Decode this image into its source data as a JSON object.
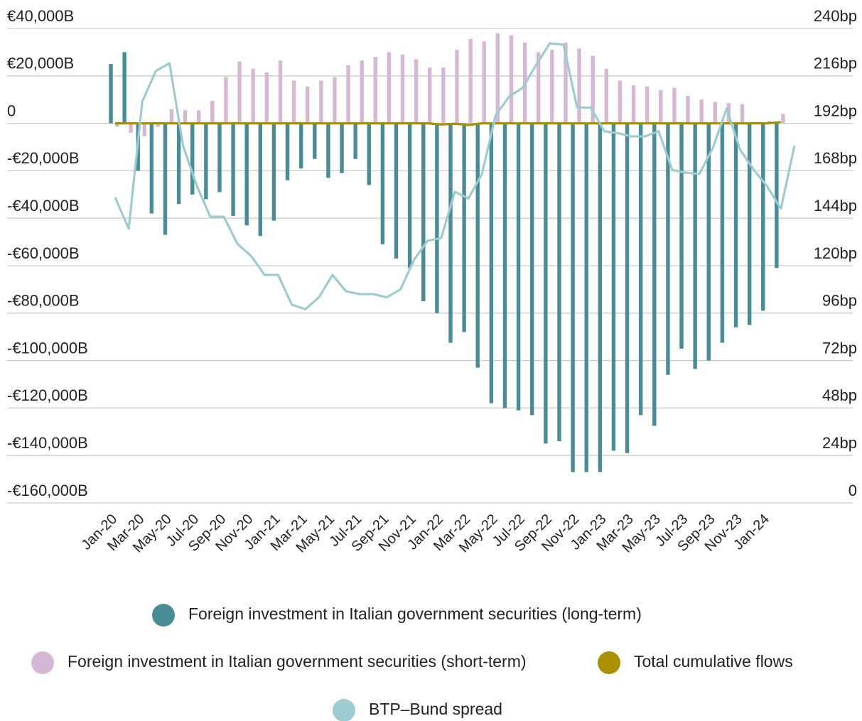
{
  "chart_data": {
    "type": "bar",
    "categories": [
      "Jan-20",
      null,
      "Mar-20",
      null,
      "May-20",
      null,
      "Jul-20",
      null,
      "Sep-20",
      null,
      "Nov-20",
      null,
      "Jan-21",
      null,
      "Mar-21",
      null,
      "May-21",
      null,
      "Jul-21",
      null,
      "Sep-21",
      null,
      "Nov-21",
      null,
      "Jan-22",
      null,
      "Mar-22",
      null,
      "May-22",
      null,
      "Jul-22",
      null,
      "Sep-22",
      null,
      "Nov-22",
      null,
      "Jan-23",
      null,
      "Mar-23",
      null,
      "May-23",
      null,
      "Jul-23",
      null,
      "Sep-23",
      null,
      "Nov-23",
      null,
      "Jan-24",
      null,
      null
    ],
    "series": [
      {
        "name": "Foreign investment in Italian government securities (long-term)",
        "type": "bar",
        "color": "#4a8c96",
        "values": [
          25000,
          30000,
          -20000,
          -38000,
          -47000,
          -34000,
          -30000,
          -32000,
          -29000,
          -39000,
          -43000,
          -47500,
          -41000,
          -24000,
          -19000,
          -15000,
          -23000,
          -21000,
          -15000,
          -26000,
          -51000,
          -57000,
          -61000,
          -75000,
          -80000,
          -92500,
          -88000,
          -103000,
          -118000,
          -120000,
          -121000,
          -123000,
          -135000,
          -134000,
          -147000,
          -147000,
          -147000,
          -138000,
          -139000,
          -123000,
          -127500,
          -106000,
          -95000,
          -103500,
          -100000,
          -92500,
          -86000,
          -85000,
          -79000,
          -61000,
          null
        ]
      },
      {
        "name": "Foreign investment in Italian government securities (short-term)",
        "type": "bar",
        "color": "#d5b8d3",
        "values": [
          -1500,
          -4000,
          -5500,
          -1500,
          6000,
          5500,
          5500,
          9500,
          19500,
          26000,
          23000,
          21500,
          26500,
          18000,
          15500,
          18000,
          19500,
          24500,
          26500,
          28000,
          30000,
          29000,
          27000,
          23500,
          23500,
          31000,
          35500,
          34500,
          38000,
          37000,
          34000,
          30000,
          31000,
          34000,
          31500,
          28500,
          23000,
          18000,
          16000,
          15500,
          14000,
          15000,
          11500,
          10000,
          9000,
          8500,
          8000,
          0,
          1000,
          4000,
          null
        ]
      },
      {
        "name": "Total cumulative flows",
        "type": "line",
        "color": "#a89000",
        "values": [
          0,
          0,
          0,
          0,
          0,
          0,
          0,
          0,
          0,
          0,
          0,
          0,
          0,
          0,
          0,
          0,
          0,
          0,
          0,
          0,
          0,
          0,
          0,
          0,
          -500,
          -200,
          -700,
          0,
          0,
          0,
          0,
          0,
          0,
          0,
          0,
          0,
          0,
          0,
          0,
          0,
          0,
          0,
          0,
          0,
          0,
          0,
          0,
          0,
          0,
          500,
          null
        ]
      },
      {
        "name": "BTP–Bund spread",
        "type": "line",
        "axis": "y2",
        "color": "#9ccbd0",
        "values": [
          154.5,
          138.7,
          203,
          218.5,
          222.4,
          180.7,
          160.6,
          144.8,
          144.8,
          131,
          125,
          115.3,
          115.3,
          100.3,
          98,
          104,
          115.3,
          107,
          105.6,
          105.6,
          104,
          108,
          123,
          132.6,
          134,
          157.4,
          154,
          166.4,
          196,
          205.5,
          210,
          221.7,
          232.5,
          231.8,
          200,
          200,
          188,
          187,
          185.4,
          185.4,
          188,
          168.5,
          167,
          166.4,
          179.7,
          199.4,
          178.6,
          168.5,
          160,
          148.8,
          180.7
        ]
      }
    ],
    "ylim": [
      -160000,
      40000
    ],
    "yticks": [
      {
        "value": -160000,
        "label": "-€160,000B"
      },
      {
        "value": -140000,
        "label": "-€140,000B"
      },
      {
        "value": -120000,
        "label": "-€120,000B"
      },
      {
        "value": -100000,
        "label": "-€100,000B"
      },
      {
        "value": -80000,
        "label": "-€80,000B"
      },
      {
        "value": -60000,
        "label": "-€60,000B"
      },
      {
        "value": -40000,
        "label": "-€40,000B"
      },
      {
        "value": -20000,
        "label": "-€20,000B"
      },
      0,
      {
        "value": 20000,
        "label": "€20,000B"
      },
      {
        "value": 40000,
        "label": "€40,000B"
      }
    ],
    "y2lim": [
      0,
      240
    ],
    "y2ticks": [
      0,
      {
        "value": 24,
        "label": "24bp"
      },
      {
        "value": 48,
        "label": "48bp"
      },
      {
        "value": 72,
        "label": "72bp"
      },
      {
        "value": 96,
        "label": "96bp"
      },
      {
        "value": 120,
        "label": "120bp"
      },
      {
        "value": 144,
        "label": "144bp"
      },
      {
        "value": 168,
        "label": "168bp"
      },
      {
        "value": 192,
        "label": "192bp"
      },
      {
        "value": 216,
        "label": "216bp"
      },
      {
        "value": 240,
        "label": "240bp"
      }
    ],
    "grid": true,
    "legend": "bottom"
  }
}
